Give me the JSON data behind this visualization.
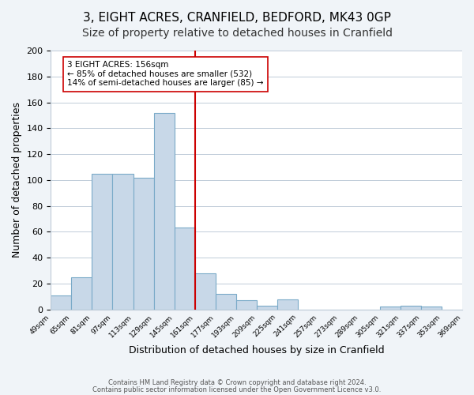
{
  "title": "3, EIGHT ACRES, CRANFIELD, BEDFORD, MK43 0GP",
  "subtitle": "Size of property relative to detached houses in Cranfield",
  "xlabel": "Distribution of detached houses by size in Cranfield",
  "ylabel": "Number of detached properties",
  "bins": [
    "49sqm",
    "65sqm",
    "81sqm",
    "97sqm",
    "113sqm",
    "129sqm",
    "145sqm",
    "161sqm",
    "177sqm",
    "193sqm",
    "209sqm",
    "225sqm",
    "241sqm",
    "257sqm",
    "273sqm",
    "289sqm",
    "305sqm",
    "321sqm",
    "337sqm",
    "353sqm",
    "369sqm"
  ],
  "values": [
    11,
    25,
    105,
    105,
    102,
    152,
    63,
    28,
    12,
    7,
    3,
    8,
    0,
    0,
    0,
    0,
    2,
    3,
    2,
    0
  ],
  "bar_color": "#c8d8e8",
  "bar_edgecolor": "#7aaac8",
  "vline_color": "#cc0000",
  "vline_x": 6.5,
  "annotation_text": "3 EIGHT ACRES: 156sqm\n← 85% of detached houses are smaller (532)\n14% of semi-detached houses are larger (85) →",
  "annotation_box_edgecolor": "#cc0000",
  "annotation_box_facecolor": "#ffffff",
  "ylim": [
    0,
    200
  ],
  "yticks": [
    0,
    20,
    40,
    60,
    80,
    100,
    120,
    140,
    160,
    180,
    200
  ],
  "footer1": "Contains HM Land Registry data © Crown copyright and database right 2024.",
  "footer2": "Contains public sector information licensed under the Open Government Licence v3.0.",
  "bg_color": "#f0f4f8",
  "plot_bg_color": "#ffffff",
  "grid_color": "#c0ccd8",
  "title_fontsize": 11,
  "subtitle_fontsize": 10,
  "xlabel_fontsize": 9,
  "ylabel_fontsize": 9
}
